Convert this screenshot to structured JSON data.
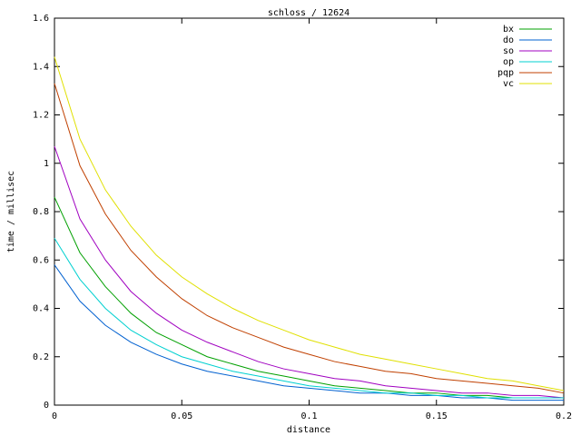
{
  "chart_data": {
    "type": "line",
    "title": "schloss / 12624",
    "x_label": "distance",
    "y_label": "time / millisec",
    "x": [
      0,
      0.01,
      0.02,
      0.03,
      0.04,
      0.05,
      0.06,
      0.07,
      0.08,
      0.09,
      0.1,
      0.11,
      0.12,
      0.13,
      0.14,
      0.15,
      0.16,
      0.17,
      0.18,
      0.19,
      0.2
    ],
    "series": [
      {
        "name": "bx",
        "color": "#00a000",
        "values": [
          0.86,
          0.63,
          0.49,
          0.38,
          0.3,
          0.25,
          0.2,
          0.17,
          0.14,
          0.12,
          0.1,
          0.08,
          0.07,
          0.06,
          0.05,
          0.05,
          0.04,
          0.04,
          0.03,
          0.03,
          0.03
        ]
      },
      {
        "name": "do",
        "color": "#0060d0",
        "values": [
          0.58,
          0.43,
          0.33,
          0.26,
          0.21,
          0.17,
          0.14,
          0.12,
          0.1,
          0.08,
          0.07,
          0.06,
          0.05,
          0.05,
          0.04,
          0.04,
          0.03,
          0.03,
          0.02,
          0.02,
          0.02
        ]
      },
      {
        "name": "so",
        "color": "#a000c0",
        "values": [
          1.07,
          0.77,
          0.6,
          0.47,
          0.38,
          0.31,
          0.26,
          0.22,
          0.18,
          0.15,
          0.13,
          0.11,
          0.1,
          0.08,
          0.07,
          0.06,
          0.05,
          0.05,
          0.04,
          0.04,
          0.03
        ]
      },
      {
        "name": "op",
        "color": "#00d0d0",
        "values": [
          0.69,
          0.52,
          0.4,
          0.31,
          0.25,
          0.2,
          0.17,
          0.14,
          0.12,
          0.1,
          0.08,
          0.07,
          0.06,
          0.05,
          0.05,
          0.04,
          0.04,
          0.03,
          0.03,
          0.03,
          0.03
        ]
      },
      {
        "name": "pqp",
        "color": "#c04000",
        "values": [
          1.33,
          0.99,
          0.79,
          0.64,
          0.53,
          0.44,
          0.37,
          0.32,
          0.28,
          0.24,
          0.21,
          0.18,
          0.16,
          0.14,
          0.13,
          0.11,
          0.1,
          0.09,
          0.08,
          0.07,
          0.05
        ]
      },
      {
        "name": "vc",
        "color": "#e0e000",
        "values": [
          1.44,
          1.1,
          0.89,
          0.74,
          0.62,
          0.53,
          0.46,
          0.4,
          0.35,
          0.31,
          0.27,
          0.24,
          0.21,
          0.19,
          0.17,
          0.15,
          0.13,
          0.11,
          0.1,
          0.08,
          0.06
        ]
      }
    ],
    "xlim": [
      0,
      0.2
    ],
    "xticks": [
      0,
      0.05,
      0.1,
      0.15,
      0.2
    ],
    "ylim": [
      0,
      1.6
    ],
    "yticks": [
      0,
      0.2,
      0.4,
      0.6,
      0.8,
      1,
      1.2,
      1.4,
      1.6
    ],
    "legend": "top-right"
  }
}
